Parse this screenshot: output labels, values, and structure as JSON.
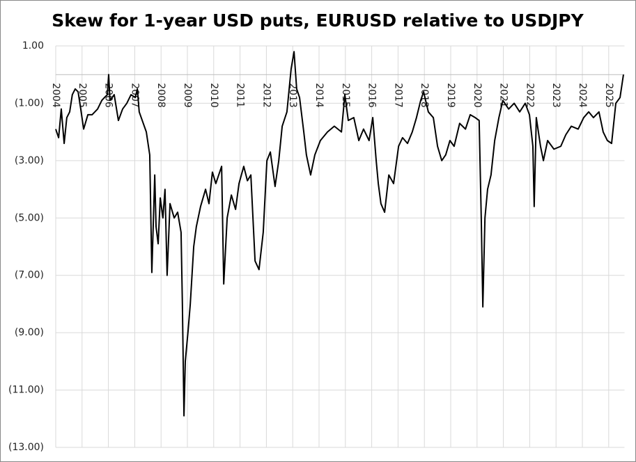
{
  "chart_data": {
    "type": "line",
    "title": "Skew for 1-year USD puts, EURUSD relative to USDJPY",
    "x": [
      2004.0,
      2004.11,
      2004.21,
      2004.32,
      2004.42,
      2004.53,
      2004.63,
      2004.74,
      2004.85,
      2004.95,
      2005.06,
      2005.22,
      2005.38,
      2005.59,
      2005.75,
      2005.85,
      2005.96,
      2006.01,
      2006.06,
      2006.22,
      2006.38,
      2006.54,
      2006.7,
      2006.86,
      2007.02,
      2007.1,
      2007.17,
      2007.44,
      2007.57,
      2007.65,
      2007.76,
      2007.81,
      2007.89,
      2007.97,
      2008.07,
      2008.15,
      2008.23,
      2008.34,
      2008.5,
      2008.63,
      2008.76,
      2008.81,
      2008.87,
      2008.92,
      2009.03,
      2009.11,
      2009.24,
      2009.34,
      2009.5,
      2009.69,
      2009.82,
      2009.95,
      2010.08,
      2010.3,
      2010.38,
      2010.51,
      2010.67,
      2010.83,
      2010.96,
      2011.14,
      2011.28,
      2011.41,
      2011.57,
      2011.72,
      2011.88,
      2012.02,
      2012.15,
      2012.33,
      2012.47,
      2012.6,
      2012.78,
      2012.94,
      2013.05,
      2013.15,
      2013.26,
      2013.42,
      2013.52,
      2013.68,
      2013.84,
      2014.05,
      2014.32,
      2014.58,
      2014.85,
      2014.98,
      2015.11,
      2015.32,
      2015.51,
      2015.69,
      2015.9,
      2016.04,
      2016.17,
      2016.25,
      2016.35,
      2016.49,
      2016.65,
      2016.83,
      2017.02,
      2017.17,
      2017.36,
      2017.54,
      2017.7,
      2017.86,
      2017.97,
      2018.15,
      2018.34,
      2018.5,
      2018.66,
      2018.81,
      2018.97,
      2019.13,
      2019.34,
      2019.56,
      2019.74,
      2019.93,
      2020.08,
      2020.16,
      2020.22,
      2020.3,
      2020.4,
      2020.53,
      2020.67,
      2020.83,
      2020.98,
      2021.2,
      2021.41,
      2021.62,
      2021.83,
      2021.99,
      2022.12,
      2022.17,
      2022.25,
      2022.41,
      2022.52,
      2022.68,
      2022.92,
      2023.18,
      2023.37,
      2023.58,
      2023.84,
      2024.05,
      2024.24,
      2024.42,
      2024.63,
      2024.79,
      2024.95,
      2025.11,
      2025.27,
      2025.43,
      2025.56
    ],
    "series": [
      {
        "name": "EURUSD relative to USDJPY",
        "color": "#000000",
        "values": [
          -1.9,
          -2.2,
          -1.2,
          -2.4,
          -1.5,
          -1.3,
          -0.7,
          -0.5,
          -0.6,
          -1.2,
          -1.9,
          -1.4,
          -1.4,
          -1.2,
          -0.9,
          -0.8,
          -0.7,
          0.0,
          -0.9,
          -0.7,
          -1.6,
          -1.2,
          -1.0,
          -0.7,
          -0.8,
          -0.5,
          -1.3,
          -2.0,
          -2.8,
          -6.9,
          -3.5,
          -5.3,
          -5.9,
          -4.3,
          -5.0,
          -4.0,
          -7.0,
          -4.5,
          -5.0,
          -4.8,
          -5.5,
          -8.0,
          -11.9,
          -10.0,
          -8.9,
          -8.0,
          -6.0,
          -5.3,
          -4.6,
          -4.0,
          -4.5,
          -3.4,
          -3.8,
          -3.2,
          -7.3,
          -5.0,
          -4.2,
          -4.7,
          -3.8,
          -3.2,
          -3.7,
          -3.5,
          -6.5,
          -6.8,
          -5.5,
          -3.0,
          -2.7,
          -3.9,
          -3.0,
          -1.8,
          -1.3,
          0.2,
          0.8,
          -0.5,
          -0.8,
          -2.0,
          -2.8,
          -3.5,
          -2.8,
          -2.3,
          -2.0,
          -1.8,
          -2.0,
          -0.7,
          -1.6,
          -1.5,
          -2.3,
          -1.9,
          -2.3,
          -1.5,
          -3.0,
          -3.8,
          -4.5,
          -4.8,
          -3.5,
          -3.8,
          -2.5,
          -2.2,
          -2.4,
          -2.0,
          -1.5,
          -0.9,
          -0.6,
          -1.3,
          -1.5,
          -2.5,
          -3.0,
          -2.8,
          -2.3,
          -2.5,
          -1.7,
          -1.9,
          -1.4,
          -1.5,
          -1.6,
          -5.0,
          -8.1,
          -5.0,
          -4.0,
          -3.5,
          -2.3,
          -1.5,
          -0.9,
          -1.2,
          -1.0,
          -1.3,
          -1.0,
          -1.4,
          -2.5,
          -4.6,
          -1.5,
          -2.5,
          -3.0,
          -2.3,
          -2.6,
          -2.5,
          -2.1,
          -1.8,
          -1.9,
          -1.5,
          -1.3,
          -1.5,
          -1.3,
          -2.0,
          -2.3,
          -2.4,
          -1.0,
          -0.8,
          0.0
        ]
      }
    ],
    "xlim": [
      2004,
      2025.6
    ],
    "xticks": [
      2004,
      2005,
      2006,
      2007,
      2008,
      2009,
      2010,
      2011,
      2012,
      2013,
      2014,
      2015,
      2016,
      2017,
      2018,
      2019,
      2020,
      2021,
      2022,
      2023,
      2024,
      2025
    ],
    "ylim": [
      -13,
      1
    ],
    "yticks": [
      {
        "value": 1,
        "label": "1.00"
      },
      {
        "value": -1,
        "label": "(1.00)"
      },
      {
        "value": -3,
        "label": "(3.00)"
      },
      {
        "value": -5,
        "label": "(5.00)"
      },
      {
        "value": -7,
        "label": "(7.00)"
      },
      {
        "value": -9,
        "label": "(9.00)"
      },
      {
        "value": -11,
        "label": "(11.00)"
      },
      {
        "value": -13,
        "label": "(13.00)"
      }
    ],
    "grid": true
  }
}
